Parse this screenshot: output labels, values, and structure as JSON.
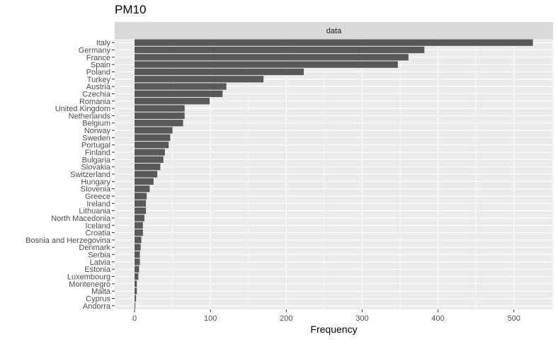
{
  "chart_data": {
    "type": "bar",
    "orientation": "horizontal",
    "title": "PM10",
    "facet_label": "data",
    "xlabel": "Frequency",
    "ylabel": "",
    "xlim": [
      -26,
      549
    ],
    "x_ticks": [
      0,
      100,
      200,
      300,
      400,
      500
    ],
    "grid": true,
    "categories": [
      "Italy",
      "Germany",
      "France",
      "Spain",
      "Poland",
      "Turkey",
      "Austria",
      "Czechia",
      "Romania",
      "United Kingdom",
      "Netherlands",
      "Belgium",
      "Norway",
      "Sweden",
      "Portugal",
      "Finland",
      "Bulgaria",
      "Slovakia",
      "Switzerland",
      "Hungary",
      "Slovenia",
      "Greece",
      "Ireland",
      "Lithuania",
      "North Macedonia",
      "Iceland",
      "Croatia",
      "Bosnia and Herzegovina",
      "Denmark",
      "Serbia",
      "Latvia",
      "Estonia",
      "Luxembourg",
      "Montenegro",
      "Malta",
      "Cyprus",
      "Andorra"
    ],
    "values": [
      525,
      382,
      361,
      347,
      223,
      170,
      121,
      116,
      99,
      66,
      66,
      64,
      50,
      47,
      45,
      40,
      38,
      34,
      30,
      25,
      20,
      16,
      15,
      15,
      13,
      11,
      11,
      9,
      8,
      7,
      7,
      6,
      5,
      3,
      3,
      2,
      1
    ],
    "colors": {
      "bar": "#595959",
      "panel": "#ebebeb",
      "strip": "#d9d9d9",
      "grid": "#ffffff"
    }
  }
}
